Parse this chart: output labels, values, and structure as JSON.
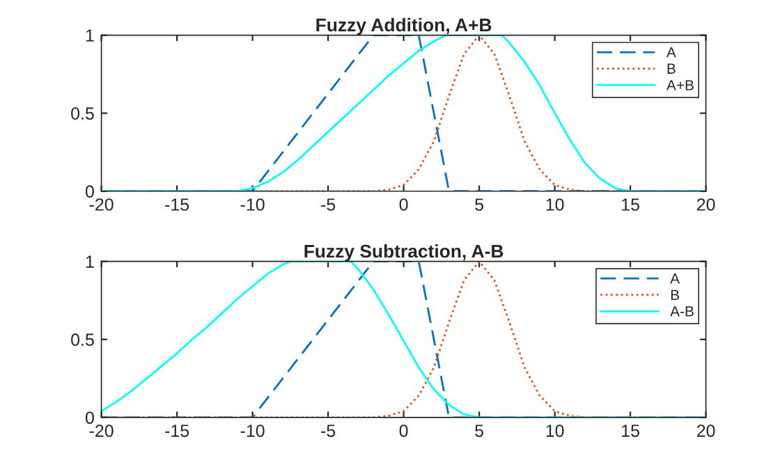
{
  "chart_data": [
    {
      "type": "line",
      "title": "Fuzzy Addition, A+B",
      "xlim": [
        -20,
        20
      ],
      "ylim": [
        0,
        1
      ],
      "xticks": [
        -20,
        -15,
        -10,
        -5,
        0,
        5,
        10,
        15,
        20
      ],
      "yticks": [
        0,
        0.5,
        1
      ],
      "grid": false,
      "legend": "top right",
      "marker": "none",
      "series": [
        {
          "name": "A",
          "color": "#0072bd",
          "line_style": "dashed",
          "x": [
            -20,
            -10,
            -2,
            1,
            3,
            20
          ],
          "values": [
            0,
            0,
            1,
            1,
            0,
            0
          ]
        },
        {
          "name": "B",
          "color": "#d95319",
          "line_style": "dotted",
          "x": [
            -20,
            -2,
            -1,
            0,
            1,
            2,
            3,
            4,
            5,
            6,
            7,
            8,
            9,
            10,
            11,
            12,
            20
          ],
          "values": [
            0,
            0,
            0.01,
            0.04,
            0.14,
            0.32,
            0.61,
            0.88,
            1,
            0.88,
            0.61,
            0.32,
            0.14,
            0.04,
            0.01,
            0,
            0
          ]
        },
        {
          "name": "A+B",
          "color": "#00ffff",
          "line_style": "solid",
          "x": [
            -20,
            -11,
            -10,
            -9,
            -8,
            -7,
            -6,
            -5,
            -4,
            -3,
            -2,
            -1,
            0,
            1,
            2,
            2.8,
            6.5,
            7,
            8,
            9,
            10,
            11,
            12,
            13,
            14,
            15,
            20
          ],
          "values": [
            0,
            0,
            0.02,
            0.06,
            0.12,
            0.2,
            0.29,
            0.38,
            0.47,
            0.56,
            0.65,
            0.74,
            0.82,
            0.9,
            0.96,
            1,
            1,
            0.95,
            0.83,
            0.68,
            0.5,
            0.33,
            0.18,
            0.08,
            0.02,
            0,
            0
          ]
        }
      ]
    },
    {
      "type": "line",
      "title": "Fuzzy Subtraction, A-B",
      "xlim": [
        -20,
        20
      ],
      "ylim": [
        0,
        1
      ],
      "xticks": [
        -20,
        -15,
        -10,
        -5,
        0,
        5,
        10,
        15,
        20
      ],
      "yticks": [
        0,
        0.5,
        1
      ],
      "grid": false,
      "legend": "top right",
      "marker": "none",
      "series": [
        {
          "name": "A",
          "color": "#0072bd",
          "line_style": "dashed",
          "x": [
            -20,
            -10,
            -2,
            1,
            3,
            20
          ],
          "values": [
            0,
            0,
            1,
            1,
            0,
            0
          ]
        },
        {
          "name": "B",
          "color": "#d95319",
          "line_style": "dotted",
          "x": [
            -20,
            -2,
            -1,
            0,
            1,
            2,
            3,
            4,
            5,
            6,
            7,
            8,
            9,
            10,
            11,
            12,
            20
          ],
          "values": [
            0,
            0,
            0.01,
            0.04,
            0.14,
            0.32,
            0.61,
            0.88,
            1,
            0.88,
            0.61,
            0.32,
            0.14,
            0.04,
            0.01,
            0,
            0
          ]
        },
        {
          "name": "A-B",
          "color": "#00ffff",
          "line_style": "solid",
          "x": [
            -20,
            -19,
            -18,
            -17,
            -16,
            -15,
            -14,
            -13,
            -12,
            -11,
            -10,
            -9,
            -8,
            -7.5,
            -3.5,
            -3,
            -2,
            -1,
            0,
            1,
            2,
            3,
            4,
            5,
            20
          ],
          "values": [
            0.04,
            0.1,
            0.17,
            0.25,
            0.33,
            0.41,
            0.5,
            0.58,
            0.67,
            0.76,
            0.84,
            0.92,
            0.98,
            1,
            1,
            0.95,
            0.82,
            0.66,
            0.49,
            0.32,
            0.18,
            0.08,
            0.02,
            0,
            0
          ]
        }
      ]
    }
  ]
}
